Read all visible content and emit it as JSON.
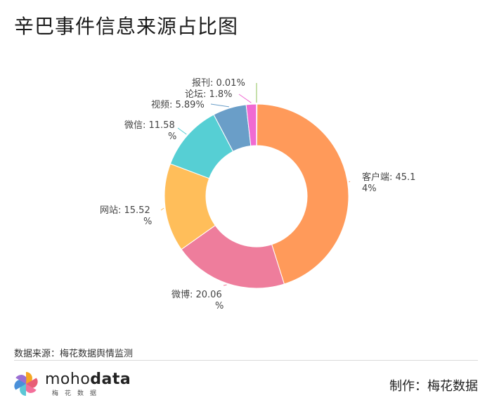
{
  "title": "辛巴事件信息来源占比图",
  "chart_data": {
    "type": "pie",
    "donut": true,
    "slices": [
      {
        "name": "客户端",
        "value": 45.14,
        "label_lines": [
          "客户端: 45.1",
          "4%"
        ],
        "color": "#ff9a5a"
      },
      {
        "name": "微博",
        "value": 20.06,
        "label_lines": [
          "微博: 20.06",
          "%"
        ],
        "color": "#ee7d9c"
      },
      {
        "name": "网站",
        "value": 15.52,
        "label_lines": [
          "网站: 15.52",
          "%"
        ],
        "color": "#ffbe5a"
      },
      {
        "name": "微信",
        "value": 11.58,
        "label_lines": [
          "微信: 11.58",
          "%"
        ],
        "color": "#56cfd4"
      },
      {
        "name": "视频",
        "value": 5.89,
        "label_lines": [
          "视频: 5.89%"
        ],
        "color": "#6a9ec8"
      },
      {
        "name": "论坛",
        "value": 1.8,
        "label_lines": [
          "论坛: 1.8%"
        ],
        "color": "#f06ad2"
      },
      {
        "name": "报刊",
        "value": 0.01,
        "label_lines": [
          "报刊: 0.01%"
        ],
        "color": "#8fc25a"
      }
    ]
  },
  "footer": {
    "source": "数据来源：梅花数据舆情监测",
    "logo_word_light": "moho",
    "logo_word_bold": "data",
    "logo_sub": "梅花数据",
    "maker": "制作：梅花数据"
  }
}
